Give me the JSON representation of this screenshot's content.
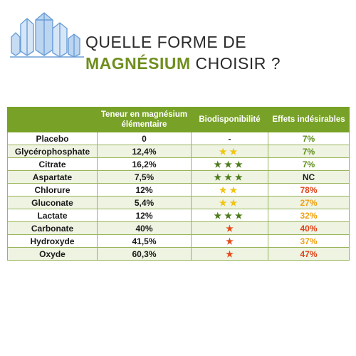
{
  "title": {
    "line1": "QUELLE FORME DE",
    "line2_highlight": "MAGNÉSIUM",
    "line2_rest": " CHOISIR ?"
  },
  "logo": {
    "icon": "crystal-cluster-icon",
    "color": "#6b9fd8"
  },
  "colors": {
    "header_bg": "#78a227",
    "accent_green": "#6f8f1f",
    "star_green": "#4d7a1b",
    "star_yellow": "#f1c40f",
    "star_red": "#e34a1c",
    "effect_green": "#5f8f1a",
    "effect_orange": "#f0a216",
    "effect_red": "#e0441b"
  },
  "table": {
    "headers": [
      "",
      "Teneur en magnésium élémentaire",
      "Biodisponibilité",
      "Effets indésirables"
    ],
    "rows": [
      {
        "name": "Placebo",
        "content": "0",
        "bio": "-",
        "bio_style": "none",
        "effects": "7%",
        "effects_style": "green"
      },
      {
        "name": "Glycérophosphate",
        "content": "12,4%",
        "bio": "★★",
        "bio_style": "yellow",
        "effects": "7%",
        "effects_style": "green"
      },
      {
        "name": "Citrate",
        "content": "16,2%",
        "bio": "★★★",
        "bio_style": "green",
        "effects": "7%",
        "effects_style": "green"
      },
      {
        "name": "Aspartate",
        "content": "7,5%",
        "bio": "★★★",
        "bio_style": "green",
        "effects": "NC",
        "effects_style": "black"
      },
      {
        "name": "Chlorure",
        "content": "12%",
        "bio": "★★",
        "bio_style": "yellow",
        "effects": "78%",
        "effects_style": "red"
      },
      {
        "name": "Gluconate",
        "content": "5,4%",
        "bio": "★★",
        "bio_style": "yellow",
        "effects": "27%",
        "effects_style": "orange"
      },
      {
        "name": "Lactate",
        "content": "12%",
        "bio": "★★★",
        "bio_style": "green",
        "effects": "32%",
        "effects_style": "orange"
      },
      {
        "name": "Carbonate",
        "content": "40%",
        "bio": "★",
        "bio_style": "red",
        "effects": "40%",
        "effects_style": "red"
      },
      {
        "name": "Hydroxyde",
        "content": "41,5%",
        "bio": "★",
        "bio_style": "red",
        "effects": "37%",
        "effects_style": "orange"
      },
      {
        "name": "Oxyde",
        "content": "60,3%",
        "bio": "★",
        "bio_style": "red",
        "effects": "47%",
        "effects_style": "red"
      }
    ]
  }
}
